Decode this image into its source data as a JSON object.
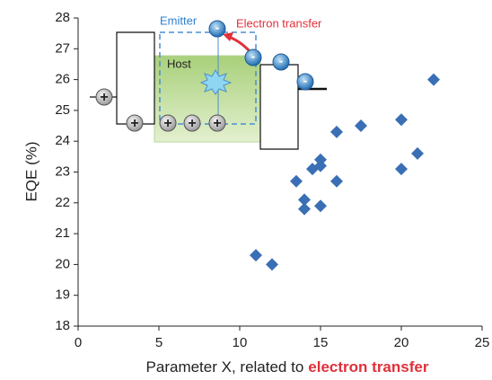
{
  "chart_data": {
    "type": "scatter",
    "y_label": "EQE (%)",
    "x_label": "Parameter X, related to",
    "x_label_emphasis": "electron transfer",
    "x": [
      11,
      12,
      13.5,
      14,
      14,
      14.5,
      15,
      15,
      15,
      16,
      16,
      17.5,
      20,
      20,
      21,
      22
    ],
    "values": [
      20.3,
      20.0,
      22.7,
      22.1,
      21.8,
      23.1,
      23.2,
      23.4,
      21.9,
      24.3,
      22.7,
      24.5,
      24.7,
      23.1,
      23.6,
      26.0
    ],
    "color": "#3a6fb5",
    "xlim": [
      0,
      25
    ],
    "xticks": [
      0,
      5,
      10,
      15,
      20,
      25
    ],
    "ylim": [
      18,
      28
    ],
    "yticks": [
      18,
      19,
      20,
      21,
      22,
      23,
      24,
      25,
      26,
      27,
      28
    ],
    "inset": {
      "emitter_label": "Emitter",
      "transfer_label": "Electron transfer",
      "host_label": "Host",
      "hole_symbol": "+",
      "electron_symbol": "-"
    }
  }
}
